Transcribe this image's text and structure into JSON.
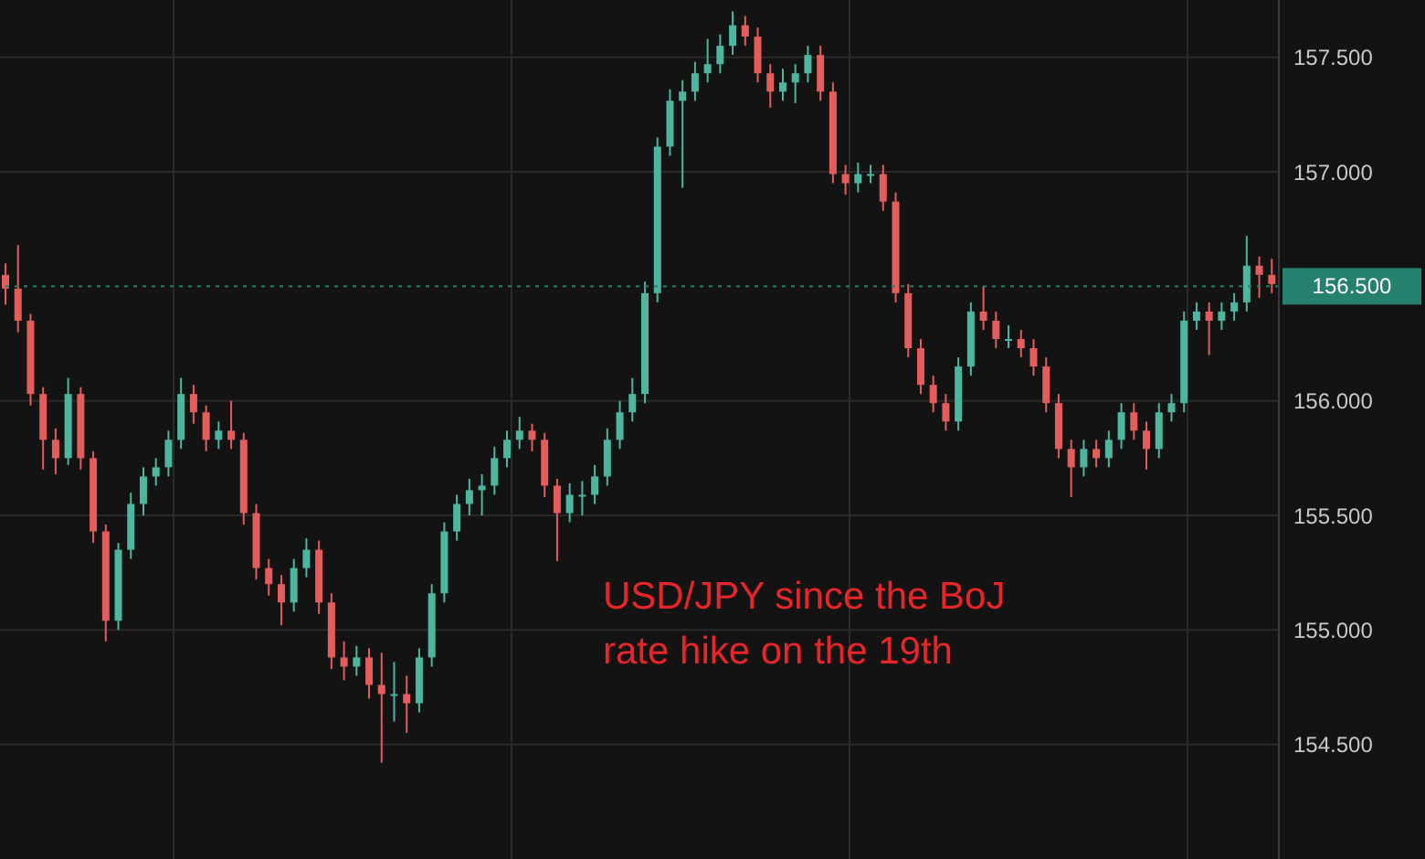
{
  "chart_data": {
    "type": "candlestick",
    "categories": [
      null,
      null,
      null,
      null,
      null,
      null,
      null,
      null,
      null,
      null,
      null,
      null,
      null,
      null,
      null,
      null,
      null,
      null,
      null,
      null,
      null,
      null,
      null,
      null,
      null,
      null,
      null,
      null,
      null,
      null,
      null,
      null,
      null,
      null,
      null,
      null,
      null,
      null,
      null,
      null,
      null,
      null,
      null,
      null,
      null,
      null,
      null,
      null,
      null,
      null,
      null,
      null,
      null,
      null,
      null,
      null,
      null,
      null,
      null,
      null,
      null,
      null,
      null,
      null,
      null,
      null,
      null,
      null,
      null,
      null,
      null,
      null,
      null,
      null,
      null,
      null,
      null,
      null,
      null,
      null,
      null,
      null,
      null,
      null,
      null,
      null,
      null,
      null,
      null,
      null,
      null,
      null,
      null,
      null,
      null,
      null,
      null,
      null,
      null,
      null,
      null,
      null
    ],
    "ohlc": [
      [
        156.55,
        156.6,
        156.42,
        156.49
      ],
      [
        156.49,
        156.68,
        156.3,
        156.35
      ],
      [
        156.35,
        156.38,
        155.98,
        156.03
      ],
      [
        156.03,
        156.06,
        155.7,
        155.83
      ],
      [
        155.83,
        155.88,
        155.68,
        155.75
      ],
      [
        155.75,
        156.1,
        155.72,
        156.03
      ],
      [
        156.03,
        156.06,
        155.7,
        155.75
      ],
      [
        155.75,
        155.78,
        155.38,
        155.43
      ],
      [
        155.43,
        155.46,
        154.95,
        155.04
      ],
      [
        155.04,
        155.38,
        155.0,
        155.35
      ],
      [
        155.35,
        155.6,
        155.31,
        155.55
      ],
      [
        155.55,
        155.71,
        155.5,
        155.67
      ],
      [
        155.67,
        155.75,
        155.63,
        155.71
      ],
      [
        155.71,
        155.87,
        155.67,
        155.83
      ],
      [
        155.83,
        156.1,
        155.79,
        156.03
      ],
      [
        156.03,
        156.07,
        155.9,
        155.95
      ],
      [
        155.95,
        155.98,
        155.78,
        155.83
      ],
      [
        155.83,
        155.91,
        155.79,
        155.87
      ],
      [
        155.87,
        156.0,
        155.79,
        155.83
      ],
      [
        155.83,
        155.86,
        155.46,
        155.51
      ],
      [
        155.51,
        155.55,
        155.22,
        155.27
      ],
      [
        155.27,
        155.31,
        155.15,
        155.2
      ],
      [
        155.2,
        155.24,
        155.02,
        155.12
      ],
      [
        155.12,
        155.31,
        155.08,
        155.27
      ],
      [
        155.27,
        155.4,
        155.23,
        155.35
      ],
      [
        155.35,
        155.39,
        155.07,
        155.12
      ],
      [
        155.12,
        155.16,
        154.83,
        154.88
      ],
      [
        154.88,
        154.95,
        154.78,
        154.84
      ],
      [
        154.84,
        154.93,
        154.8,
        154.88
      ],
      [
        154.88,
        154.92,
        154.7,
        154.76
      ],
      [
        154.76,
        154.9,
        154.42,
        154.72
      ],
      [
        154.72,
        154.86,
        154.6,
        154.72
      ],
      [
        154.72,
        154.8,
        154.55,
        154.68
      ],
      [
        154.68,
        154.92,
        154.64,
        154.88
      ],
      [
        154.88,
        155.2,
        154.84,
        155.16
      ],
      [
        155.16,
        155.47,
        155.12,
        155.43
      ],
      [
        155.43,
        155.59,
        155.39,
        155.55
      ],
      [
        155.55,
        155.66,
        155.5,
        155.61
      ],
      [
        155.61,
        155.68,
        155.5,
        155.63
      ],
      [
        155.63,
        155.8,
        155.59,
        155.75
      ],
      [
        155.75,
        155.87,
        155.71,
        155.83
      ],
      [
        155.83,
        155.93,
        155.79,
        155.87
      ],
      [
        155.87,
        155.9,
        155.78,
        155.83
      ],
      [
        155.83,
        155.86,
        155.58,
        155.63
      ],
      [
        155.63,
        155.66,
        155.3,
        155.51
      ],
      [
        155.51,
        155.64,
        155.47,
        155.59
      ],
      [
        155.59,
        155.65,
        155.5,
        155.59
      ],
      [
        155.59,
        155.72,
        155.55,
        155.67
      ],
      [
        155.67,
        155.88,
        155.63,
        155.83
      ],
      [
        155.83,
        156.0,
        155.79,
        155.95
      ],
      [
        155.95,
        156.1,
        155.91,
        156.03
      ],
      [
        156.03,
        156.52,
        155.99,
        156.47
      ],
      [
        156.47,
        157.15,
        156.43,
        157.11
      ],
      [
        157.11,
        157.36,
        157.07,
        157.31
      ],
      [
        157.31,
        157.4,
        156.93,
        157.35
      ],
      [
        157.35,
        157.48,
        157.31,
        157.43
      ],
      [
        157.43,
        157.58,
        157.39,
        157.47
      ],
      [
        157.47,
        157.6,
        157.43,
        157.55
      ],
      [
        157.55,
        157.7,
        157.51,
        157.64
      ],
      [
        157.64,
        157.68,
        157.55,
        157.59
      ],
      [
        157.59,
        157.63,
        157.39,
        157.43
      ],
      [
        157.43,
        157.47,
        157.28,
        157.35
      ],
      [
        157.35,
        157.45,
        157.31,
        157.39
      ],
      [
        157.39,
        157.47,
        157.3,
        157.43
      ],
      [
        157.43,
        157.55,
        157.39,
        157.51
      ],
      [
        157.51,
        157.55,
        157.31,
        157.35
      ],
      [
        157.35,
        157.39,
        156.95,
        156.99
      ],
      [
        156.99,
        157.03,
        156.9,
        156.95
      ],
      [
        156.95,
        157.04,
        156.91,
        156.99
      ],
      [
        156.99,
        157.03,
        156.95,
        156.99
      ],
      [
        156.99,
        157.03,
        156.83,
        156.87
      ],
      [
        156.87,
        156.91,
        156.43,
        156.47
      ],
      [
        156.47,
        156.51,
        156.19,
        156.23
      ],
      [
        156.23,
        156.27,
        156.03,
        156.07
      ],
      [
        156.07,
        156.11,
        155.95,
        155.99
      ],
      [
        155.99,
        156.03,
        155.87,
        155.91
      ],
      [
        155.91,
        156.19,
        155.87,
        156.15
      ],
      [
        156.15,
        156.43,
        156.11,
        156.39
      ],
      [
        156.39,
        156.5,
        156.31,
        156.35
      ],
      [
        156.35,
        156.39,
        156.23,
        156.27
      ],
      [
        156.27,
        156.33,
        156.23,
        156.27
      ],
      [
        156.27,
        156.31,
        156.19,
        156.23
      ],
      [
        156.23,
        156.27,
        156.11,
        156.15
      ],
      [
        156.15,
        156.19,
        155.95,
        155.99
      ],
      [
        155.99,
        156.03,
        155.75,
        155.79
      ],
      [
        155.79,
        155.83,
        155.58,
        155.71
      ],
      [
        155.71,
        155.83,
        155.67,
        155.79
      ],
      [
        155.79,
        155.83,
        155.71,
        155.75
      ],
      [
        155.75,
        155.87,
        155.71,
        155.83
      ],
      [
        155.83,
        155.99,
        155.79,
        155.95
      ],
      [
        155.95,
        155.99,
        155.83,
        155.87
      ],
      [
        155.87,
        155.91,
        155.7,
        155.79
      ],
      [
        155.79,
        155.99,
        155.75,
        155.95
      ],
      [
        155.95,
        156.03,
        155.91,
        155.99
      ],
      [
        155.99,
        156.39,
        155.95,
        156.35
      ],
      [
        156.35,
        156.43,
        156.31,
        156.39
      ],
      [
        156.39,
        156.43,
        156.2,
        156.35
      ],
      [
        156.35,
        156.43,
        156.31,
        156.39
      ],
      [
        156.39,
        156.47,
        156.35,
        156.43
      ],
      [
        156.43,
        156.72,
        156.39,
        156.59
      ],
      [
        156.59,
        156.63,
        156.45,
        156.55
      ],
      [
        156.55,
        156.62,
        156.47,
        156.51
      ]
    ],
    "colors": [
      "#e35d5d",
      "#e35d5d",
      "#e35d5d",
      "#e35d5d",
      "#e35d5d",
      "#4db6a0",
      "#e35d5d",
      "#e35d5d",
      "#e35d5d",
      "#4db6a0",
      "#4db6a0",
      "#4db6a0",
      "#4db6a0",
      "#4db6a0",
      "#4db6a0",
      "#e35d5d",
      "#e35d5d",
      "#4db6a0",
      "#e35d5d",
      "#e35d5d",
      "#e35d5d",
      "#e35d5d",
      "#e35d5d",
      "#4db6a0",
      "#4db6a0",
      "#e35d5d",
      "#e35d5d",
      "#e35d5d",
      "#4db6a0",
      "#e35d5d",
      "#e35d5d",
      "#4db6a0",
      "#e35d5d",
      "#4db6a0",
      "#4db6a0",
      "#4db6a0",
      "#4db6a0",
      "#4db6a0",
      "#4db6a0",
      "#4db6a0",
      "#4db6a0",
      "#4db6a0",
      "#e35d5d",
      "#e35d5d",
      "#e35d5d",
      "#4db6a0",
      "#4db6a0",
      "#4db6a0",
      "#4db6a0",
      "#4db6a0",
      "#4db6a0",
      "#4db6a0",
      "#4db6a0",
      "#4db6a0",
      "#4db6a0",
      "#4db6a0",
      "#4db6a0",
      "#4db6a0",
      "#4db6a0",
      "#e35d5d",
      "#e35d5d",
      "#e35d5d",
      "#4db6a0",
      "#4db6a0",
      "#4db6a0",
      "#e35d5d",
      "#e35d5d",
      "#e35d5d",
      "#4db6a0",
      "#4db6a0",
      "#e35d5d",
      "#e35d5d",
      "#e35d5d",
      "#e35d5d",
      "#e35d5d",
      "#e35d5d",
      "#4db6a0",
      "#4db6a0",
      "#e35d5d",
      "#e35d5d",
      "#4db6a0",
      "#e35d5d",
      "#e35d5d",
      "#e35d5d",
      "#e35d5d",
      "#e35d5d",
      "#4db6a0",
      "#e35d5d",
      "#4db6a0",
      "#4db6a0",
      "#e35d5d",
      "#e35d5d",
      "#4db6a0",
      "#4db6a0",
      "#4db6a0",
      "#4db6a0",
      "#e35d5d",
      "#4db6a0",
      "#4db6a0",
      "#4db6a0",
      "#e35d5d",
      "#e35d5d"
    ],
    "ylim": [
      154.0,
      157.75
    ],
    "yticks": [
      {
        "value": 154.5,
        "label": "154.500"
      },
      {
        "value": 155,
        "label": "155.000"
      },
      {
        "value": 155.5,
        "label": "155.500"
      },
      {
        "value": 156,
        "label": "156.000"
      },
      {
        "value": 157,
        "label": "157.000"
      },
      {
        "value": 157.5,
        "label": "157.500"
      }
    ],
    "ref_lines": [
      {
        "axis": "y",
        "value": 156.5,
        "label": "156.500",
        "color": "#26806e",
        "line_style": "dotted"
      }
    ],
    "grid": true,
    "tick_labels": "y",
    "annotations": [
      "USD/JPY since the BoJ rate hike on the 19th"
    ]
  }
}
